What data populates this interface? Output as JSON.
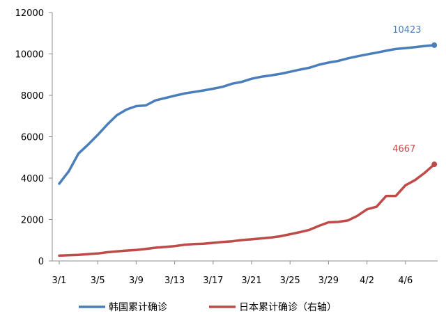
{
  "chart_data": {
    "type": "line",
    "x_tick_labels": [
      "3/1",
      "3/5",
      "3/9",
      "3/13",
      "3/17",
      "3/21",
      "3/25",
      "3/29",
      "4/2",
      "4/6"
    ],
    "y_tick_labels": [
      "0",
      "2000",
      "4000",
      "6000",
      "8000",
      "10000",
      "12000"
    ],
    "ylim": [
      0,
      12000
    ],
    "grid": false,
    "legend_position": "bottom",
    "x": [
      "3/1",
      "3/2",
      "3/3",
      "3/4",
      "3/5",
      "3/6",
      "3/7",
      "3/8",
      "3/9",
      "3/10",
      "3/11",
      "3/12",
      "3/13",
      "3/14",
      "3/15",
      "3/16",
      "3/17",
      "3/18",
      "3/19",
      "3/20",
      "3/21",
      "3/22",
      "3/23",
      "3/24",
      "3/25",
      "3/26",
      "3/27",
      "3/28",
      "3/29",
      "3/30",
      "3/31",
      "4/1",
      "4/2",
      "4/3",
      "4/4",
      "4/5",
      "4/6",
      "4/7",
      "4/8",
      "4/9"
    ],
    "series": [
      {
        "name": "韩国累计确诊",
        "color": "#4a7ebb",
        "axis": "left",
        "end_label": "10423",
        "values": [
          3736,
          4335,
          5186,
          5621,
          6088,
          6593,
          7041,
          7313,
          7478,
          7513,
          7755,
          7869,
          7979,
          8086,
          8162,
          8236,
          8320,
          8413,
          8565,
          8652,
          8799,
          8897,
          8961,
          9037,
          9137,
          9241,
          9332,
          9478,
          9583,
          9661,
          9786,
          9887,
          9976,
          10062,
          10156,
          10237,
          10284,
          10331,
          10384,
          10423
        ]
      },
      {
        "name": "日本累计确诊（右轴）",
        "color": "#be4b48",
        "axis": "right",
        "end_label": "4667",
        "values": [
          256,
          274,
          293,
          331,
          360,
          420,
          461,
          502,
          530,
          581,
          639,
          675,
          716,
          780,
          814,
          829,
          873,
          913,
          950,
          1007,
          1046,
          1089,
          1128,
          1193,
          1291,
          1387,
          1499,
          1693,
          1866,
          1887,
          1953,
          2178,
          2495,
          2617,
          3139,
          3139,
          3654,
          3906,
          4257,
          4667
        ]
      }
    ]
  }
}
